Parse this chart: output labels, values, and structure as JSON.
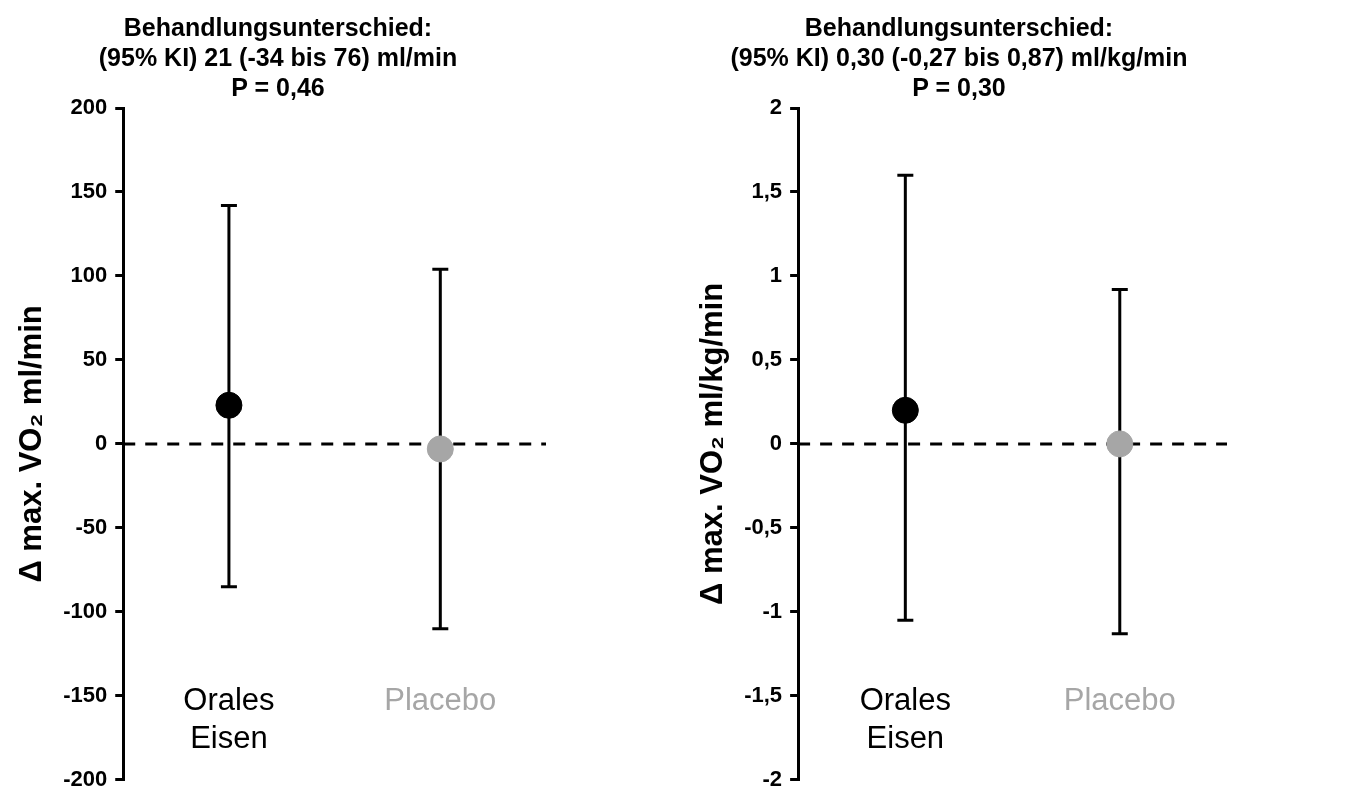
{
  "chart_data": [
    {
      "type": "scatter",
      "title": "Behandlungsunterschied:\n(95% KI) 21 (-34 bis 76) ml/min\nP = 0,46",
      "ylabel": "Δ max. VO₂ ml/min",
      "categories": [
        "Orales Eisen",
        "Placebo"
      ],
      "values": [
        23,
        -3
      ],
      "colors": [
        "#000000",
        "#a6a6a6"
      ],
      "errors": [
        [
          -85,
          142
        ],
        [
          -110,
          104
        ]
      ],
      "ylim": [
        -200,
        200
      ],
      "yticks": [
        -200,
        -150,
        -100,
        -50,
        0,
        50,
        100,
        150,
        200
      ],
      "ref_lines": [
        {
          "axis": "y",
          "value": 0,
          "color": "#000000",
          "line_style": "dashed"
        }
      ],
      "grid": false,
      "legend": false,
      "marker": "circle"
    },
    {
      "type": "scatter",
      "title": "Behandlungsunterschied:\n(95% KI) 0,30 (-0,27 bis 0,87) ml/kg/min\nP = 0,30",
      "ylabel": "Δ max. VO₂ ml/kg/min",
      "categories": [
        "Orales Eisen",
        "Placebo"
      ],
      "values": [
        0.2,
        0
      ],
      "colors": [
        "#000000",
        "#a6a6a6"
      ],
      "errors": [
        [
          -1.05,
          1.6
        ],
        [
          -1.13,
          0.92
        ]
      ],
      "ylim": [
        -2,
        2
      ],
      "yticks": [
        {
          "value": -2,
          "label": "-2"
        },
        {
          "value": -1.5,
          "label": "-1,5"
        },
        {
          "value": -1,
          "label": "-1"
        },
        {
          "value": -0.5,
          "label": "-0,5"
        },
        {
          "value": 0,
          "label": "0"
        },
        {
          "value": 0.5,
          "label": "0,5"
        },
        {
          "value": 1,
          "label": "1"
        },
        {
          "value": 1.5,
          "label": "1,5"
        },
        {
          "value": 2,
          "label": "2"
        }
      ],
      "ref_lines": [
        {
          "axis": "y",
          "value": 0,
          "color": "#000000",
          "line_style": "dashed"
        }
      ],
      "grid": false,
      "legend": false,
      "marker": "circle"
    }
  ]
}
